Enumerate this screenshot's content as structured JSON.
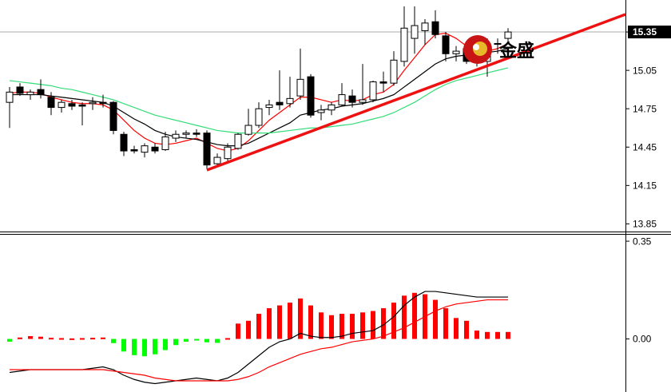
{
  "watermark": "金盛",
  "chart_data": [
    {
      "type": "candlestick",
      "open": [
        14.8,
        14.92,
        14.86,
        14.9,
        14.84,
        14.76,
        14.79,
        14.78,
        14.79,
        14.8,
        14.8,
        14.55,
        14.43,
        14.41,
        14.45,
        14.43,
        14.52,
        14.55,
        14.56,
        14.56,
        14.32,
        14.36,
        14.44,
        14.55,
        14.62,
        14.76,
        14.8,
        14.79,
        14.85,
        15.0,
        14.72,
        14.74,
        14.78,
        14.85,
        14.8,
        14.82,
        14.96,
        14.95,
        15.12,
        15.3,
        15.36,
        15.43,
        15.32,
        15.18,
        15.22,
        15.14,
        15.12,
        15.26,
        15.3
      ],
      "high": [
        14.92,
        14.95,
        14.9,
        14.98,
        14.88,
        14.82,
        14.82,
        14.8,
        14.84,
        14.86,
        14.81,
        14.57,
        14.46,
        14.48,
        14.48,
        14.57,
        14.58,
        14.58,
        14.59,
        14.58,
        14.4,
        14.48,
        14.56,
        14.75,
        14.8,
        14.82,
        15.05,
        15.0,
        15.22,
        15.02,
        14.78,
        14.8,
        14.95,
        14.9,
        15.1,
        14.97,
        15.04,
        15.2,
        15.55,
        15.55,
        15.45,
        15.52,
        15.35,
        15.24,
        15.25,
        15.2,
        15.3,
        15.3,
        15.38
      ],
      "low": [
        14.6,
        14.85,
        14.82,
        14.83,
        14.7,
        14.72,
        14.74,
        14.62,
        14.74,
        14.76,
        14.55,
        14.38,
        14.4,
        14.37,
        14.4,
        14.42,
        14.49,
        14.52,
        14.53,
        14.28,
        14.3,
        14.34,
        14.43,
        14.54,
        14.6,
        14.7,
        14.74,
        14.76,
        14.82,
        14.68,
        14.66,
        14.7,
        14.77,
        14.76,
        14.78,
        14.8,
        14.88,
        14.93,
        15.08,
        15.18,
        15.25,
        15.3,
        15.12,
        15.12,
        15.1,
        15.08,
        15.0,
        15.18,
        15.27
      ],
      "close": [
        14.88,
        14.87,
        14.88,
        14.86,
        14.76,
        14.8,
        14.77,
        14.77,
        14.8,
        14.79,
        14.58,
        14.42,
        14.42,
        14.46,
        14.42,
        14.53,
        14.55,
        14.56,
        14.55,
        14.31,
        14.37,
        14.45,
        14.55,
        14.62,
        14.75,
        14.78,
        14.78,
        14.83,
        14.98,
        14.7,
        14.74,
        14.78,
        14.86,
        14.8,
        14.82,
        14.96,
        14.95,
        15.13,
        15.38,
        15.4,
        15.42,
        15.33,
        15.18,
        15.2,
        15.12,
        15.16,
        15.26,
        15.26,
        15.35
      ],
      "up_color": "#ffffff",
      "down_color": "#000000",
      "series": [
        {
          "color": "#ff0000",
          "values": [
            14.87,
            14.88,
            14.88,
            14.87,
            14.84,
            14.82,
            14.8,
            14.79,
            14.79,
            14.78,
            14.74,
            14.66,
            14.58,
            14.52,
            14.48,
            14.47,
            14.48,
            14.5,
            14.52,
            14.48,
            14.44,
            14.42,
            14.44,
            14.5,
            14.58,
            14.66,
            14.72,
            14.78,
            14.84,
            14.84,
            14.82,
            14.8,
            14.82,
            14.81,
            14.82,
            14.86,
            14.88,
            14.94,
            15.05,
            15.15,
            15.25,
            15.33,
            15.34,
            15.3,
            15.24,
            15.2,
            15.2,
            15.22,
            15.26
          ]
        },
        {
          "color": "#000000",
          "values": [
            14.86,
            14.86,
            14.86,
            14.86,
            14.85,
            14.84,
            14.83,
            14.82,
            14.81,
            14.8,
            14.77,
            14.72,
            14.67,
            14.63,
            14.58,
            14.55,
            14.53,
            14.52,
            14.51,
            14.49,
            14.47,
            14.46,
            14.46,
            14.48,
            14.52,
            14.56,
            14.6,
            14.64,
            14.7,
            14.72,
            14.74,
            14.75,
            14.77,
            14.78,
            14.79,
            14.81,
            14.83,
            14.86,
            14.92,
            14.98,
            15.04,
            15.1,
            15.14,
            15.16,
            15.17,
            15.18,
            15.19,
            15.2,
            15.22
          ]
        },
        {
          "color": "#33dd77",
          "values": [
            14.97,
            14.96,
            14.95,
            14.94,
            14.93,
            14.91,
            14.9,
            14.88,
            14.86,
            14.84,
            14.82,
            14.79,
            14.76,
            14.73,
            14.7,
            14.68,
            14.66,
            14.64,
            14.62,
            14.6,
            14.58,
            14.57,
            14.56,
            14.56,
            14.56,
            14.56,
            14.57,
            14.58,
            14.59,
            14.6,
            14.6,
            14.61,
            14.62,
            14.63,
            14.65,
            14.67,
            14.69,
            14.72,
            14.76,
            14.8,
            14.85,
            14.9,
            14.94,
            14.97,
            14.99,
            15.01,
            15.03,
            15.05,
            15.07
          ]
        }
      ],
      "ylim": [
        13.79,
        15.6
      ],
      "yticks": [
        13.85,
        14.15,
        14.45,
        14.75,
        15.05,
        15.35
      ],
      "grid": false
    },
    {
      "type": "macd",
      "values": [
        -0.01,
        0.005,
        0.01,
        0.008,
        0.004,
        0.003,
        0.002,
        0.003,
        0.004,
        0.005,
        -0.015,
        -0.045,
        -0.058,
        -0.062,
        -0.055,
        -0.04,
        -0.022,
        -0.01,
        -0.004,
        -0.012,
        -0.014,
        0.003,
        0.055,
        0.065,
        0.09,
        0.11,
        0.12,
        0.13,
        0.145,
        0.12,
        0.095,
        0.085,
        0.09,
        0.09,
        0.095,
        0.1,
        0.11,
        0.13,
        0.155,
        0.165,
        0.16,
        0.14,
        0.11,
        0.075,
        0.065,
        0.03,
        0.025,
        0.025,
        0.025
      ],
      "positive_color": "#ff0000",
      "negative_color": "#00ff00",
      "series": [
        {
          "color": "#000000",
          "values": [
            -0.12,
            -0.115,
            -0.11,
            -0.11,
            -0.11,
            -0.11,
            -0.11,
            -0.11,
            -0.105,
            -0.1,
            -0.11,
            -0.13,
            -0.145,
            -0.155,
            -0.16,
            -0.155,
            -0.15,
            -0.145,
            -0.14,
            -0.145,
            -0.15,
            -0.14,
            -0.12,
            -0.09,
            -0.06,
            -0.03,
            -0.01,
            0.0,
            0.02,
            0.01,
            0.005,
            0.005,
            0.01,
            0.02,
            0.025,
            0.03,
            0.05,
            0.08,
            0.12,
            0.15,
            0.17,
            0.17,
            0.165,
            0.16,
            0.155,
            0.15,
            0.15,
            0.15,
            0.15
          ]
        },
        {
          "color": "#ff0000",
          "values": [
            -0.11,
            -0.11,
            -0.11,
            -0.11,
            -0.11,
            -0.11,
            -0.11,
            -0.11,
            -0.11,
            -0.11,
            -0.115,
            -0.12,
            -0.125,
            -0.13,
            -0.14,
            -0.145,
            -0.15,
            -0.15,
            -0.15,
            -0.15,
            -0.15,
            -0.15,
            -0.145,
            -0.135,
            -0.12,
            -0.1,
            -0.085,
            -0.07,
            -0.055,
            -0.045,
            -0.035,
            -0.03,
            -0.02,
            -0.01,
            -0.005,
            0.0,
            0.01,
            0.025,
            0.04,
            0.06,
            0.08,
            0.1,
            0.115,
            0.125,
            0.13,
            0.135,
            0.14,
            0.14,
            0.14
          ]
        }
      ],
      "ylim": [
        -0.19,
        0.376
      ],
      "yticks": [
        0.35,
        {
          "value": 0,
          "label": "0.00"
        }
      ]
    }
  ]
}
